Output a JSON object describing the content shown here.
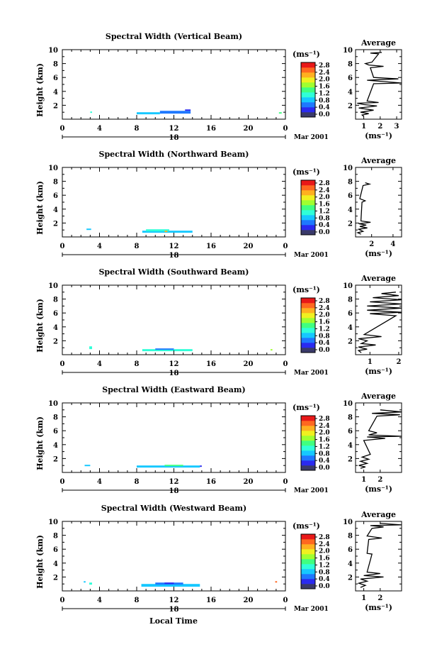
{
  "figure": {
    "xlabel": "Local Time",
    "ylabel": "Height (km)",
    "date_label": "Mar 2001",
    "day_label": "18",
    "unit_label": "(ms⁻¹)",
    "avg_title": "Average"
  },
  "colorbar": {
    "tick_labels": [
      "0.0",
      "0.4",
      "0.8",
      "1.2",
      "1.6",
      "2.0",
      "2.4",
      "2.8"
    ],
    "colors": [
      "#3a3a6a",
      "#2a2af0",
      "#1e78ff",
      "#16c8ff",
      "#30ffd8",
      "#40ff80",
      "#a0ff30",
      "#f0f020",
      "#ffb020",
      "#ff6820",
      "#e81818"
    ]
  },
  "chart_data": [
    {
      "type": "heatmap",
      "title": "Spectral Width (Vertical Beam)",
      "xlim": [
        0,
        24
      ],
      "ylim": [
        0,
        10
      ],
      "xticks": [
        "0",
        "4",
        "8",
        "12",
        "16",
        "20",
        "0"
      ],
      "yticks": [
        "2",
        "4",
        "6",
        "8",
        "10"
      ],
      "patches": [
        {
          "x0": 3.0,
          "x1": 3.2,
          "y0": 0.9,
          "y1": 1.1,
          "v": 1.2
        },
        {
          "x0": 8.0,
          "x1": 10.5,
          "y0": 0.7,
          "y1": 1.0,
          "v": 1.0
        },
        {
          "x0": 10.5,
          "x1": 13.8,
          "y0": 0.8,
          "y1": 1.2,
          "v": 0.6
        },
        {
          "x0": 13.2,
          "x1": 13.8,
          "y0": 1.2,
          "y1": 1.4,
          "v": 0.3
        },
        {
          "x0": 23.3,
          "x1": 23.6,
          "y0": 0.8,
          "y1": 1.0,
          "v": 1.4
        }
      ],
      "average": {
        "xlim": [
          0.5,
          3.3
        ],
        "xticks": [
          1,
          2,
          3
        ],
        "profile": [
          [
            1.0,
            0.4
          ],
          [
            0.9,
            0.6
          ],
          [
            1.3,
            0.8
          ],
          [
            0.8,
            1.0
          ],
          [
            1.6,
            1.3
          ],
          [
            0.7,
            1.6
          ],
          [
            1.8,
            1.9
          ],
          [
            1.0,
            2.1
          ],
          [
            0.6,
            2.3
          ],
          [
            1.9,
            2.4
          ],
          [
            1.2,
            2.6
          ],
          [
            1.6,
            5.1
          ],
          [
            3.3,
            5.2
          ],
          [
            1.2,
            5.6
          ],
          [
            3.1,
            5.8
          ],
          [
            1.6,
            6.0
          ],
          [
            1.4,
            7.4
          ],
          [
            2.2,
            7.6
          ],
          [
            1.3,
            7.8
          ],
          [
            1.1,
            8.0
          ],
          [
            1.5,
            8.2
          ],
          [
            1.9,
            9.4
          ],
          [
            1.4,
            9.5
          ],
          [
            2.1,
            9.6
          ]
        ]
      }
    },
    {
      "type": "heatmap",
      "title": "Spectral Width (Northward Beam)",
      "xlim": [
        0,
        24
      ],
      "ylim": [
        0,
        10
      ],
      "xticks": [
        "0",
        "4",
        "8",
        "12",
        "16",
        "20",
        "0"
      ],
      "yticks": [
        "2",
        "4",
        "6",
        "8",
        "10"
      ],
      "patches": [
        {
          "x0": 2.6,
          "x1": 3.1,
          "y0": 1.0,
          "y1": 1.2,
          "v": 0.9
        },
        {
          "x0": 8.6,
          "x1": 14.0,
          "y0": 0.6,
          "y1": 0.9,
          "v": 0.9
        },
        {
          "x0": 9.0,
          "x1": 11.5,
          "y0": 0.8,
          "y1": 1.1,
          "v": 1.3
        },
        {
          "x0": 11.0,
          "x1": 11.3,
          "y0": 0.7,
          "y1": 0.9,
          "v": 2.2
        }
      ],
      "average": {
        "xlim": [
          0.5,
          4.8
        ],
        "xticks": [
          2,
          4
        ],
        "profile": [
          [
            1.0,
            0.4
          ],
          [
            0.7,
            0.6
          ],
          [
            1.2,
            0.8
          ],
          [
            0.8,
            1.1
          ],
          [
            1.6,
            1.3
          ],
          [
            0.9,
            1.5
          ],
          [
            1.5,
            1.7
          ],
          [
            0.8,
            1.9
          ],
          [
            1.9,
            2.1
          ],
          [
            1.0,
            2.3
          ],
          [
            1.1,
            5.0
          ],
          [
            1.4,
            5.2
          ],
          [
            0.9,
            5.5
          ],
          [
            1.2,
            7.4
          ],
          [
            1.8,
            7.6
          ],
          [
            1.4,
            7.8
          ]
        ]
      }
    },
    {
      "type": "heatmap",
      "title": "Spectral Width (Southward Beam)",
      "xlim": [
        0,
        24
      ],
      "ylim": [
        0,
        10
      ],
      "xticks": [
        "0",
        "4",
        "8",
        "12",
        "16",
        "20",
        "0"
      ],
      "yticks": [
        "2",
        "4",
        "6",
        "8",
        "10"
      ],
      "patches": [
        {
          "x0": 2.9,
          "x1": 3.2,
          "y0": 0.8,
          "y1": 1.2,
          "v": 1.2
        },
        {
          "x0": 8.6,
          "x1": 14.0,
          "y0": 0.5,
          "y1": 0.8,
          "v": 1.1
        },
        {
          "x0": 10.0,
          "x1": 12.0,
          "y0": 0.7,
          "y1": 0.9,
          "v": 0.7
        },
        {
          "x0": 22.4,
          "x1": 22.6,
          "y0": 0.6,
          "y1": 0.8,
          "v": 1.9
        }
      ],
      "average": {
        "xlim": [
          0.5,
          2.1
        ],
        "xticks": [
          1,
          2
        ],
        "profile": [
          [
            0.7,
            0.3
          ],
          [
            0.6,
            0.6
          ],
          [
            0.9,
            0.8
          ],
          [
            0.6,
            1.1
          ],
          [
            1.2,
            1.4
          ],
          [
            0.7,
            1.6
          ],
          [
            0.9,
            2.0
          ],
          [
            0.6,
            2.3
          ],
          [
            1.4,
            2.6
          ],
          [
            0.8,
            2.9
          ],
          [
            1.9,
            5.6
          ],
          [
            1.0,
            5.9
          ],
          [
            2.1,
            6.1
          ],
          [
            0.9,
            6.4
          ],
          [
            2.1,
            6.7
          ],
          [
            0.9,
            7.0
          ],
          [
            2.1,
            7.3
          ],
          [
            1.0,
            7.6
          ],
          [
            2.1,
            7.9
          ],
          [
            1.1,
            8.2
          ],
          [
            2.0,
            8.5
          ],
          [
            1.4,
            8.8
          ],
          [
            1.9,
            9.0
          ]
        ]
      }
    },
    {
      "type": "heatmap",
      "title": "Spectral Width (Eastward Beam)",
      "xlim": [
        0,
        24
      ],
      "ylim": [
        0,
        10
      ],
      "xticks": [
        "0",
        "4",
        "8",
        "12",
        "16",
        "20",
        "0"
      ],
      "yticks": [
        "2",
        "4",
        "6",
        "8",
        "10"
      ],
      "patches": [
        {
          "x0": 2.4,
          "x1": 3.0,
          "y0": 0.9,
          "y1": 1.1,
          "v": 1.0
        },
        {
          "x0": 8.0,
          "x1": 14.8,
          "y0": 0.7,
          "y1": 1.0,
          "v": 1.0
        },
        {
          "x0": 11.0,
          "x1": 13.0,
          "y0": 0.9,
          "y1": 1.1,
          "v": 1.6
        },
        {
          "x0": 14.8,
          "x1": 15.0,
          "y0": 0.8,
          "y1": 1.0,
          "v": 0.4
        }
      ],
      "average": {
        "xlim": [
          0.5,
          3.3
        ],
        "xticks": [
          1,
          2
        ],
        "profile": [
          [
            0.8,
            0.6
          ],
          [
            1.1,
            0.8
          ],
          [
            0.7,
            1.0
          ],
          [
            1.2,
            1.3
          ],
          [
            0.8,
            1.6
          ],
          [
            1.3,
            1.9
          ],
          [
            0.9,
            2.2
          ],
          [
            1.4,
            2.6
          ],
          [
            1.0,
            4.6
          ],
          [
            2.3,
            4.9
          ],
          [
            1.2,
            5.1
          ],
          [
            3.3,
            5.2
          ],
          [
            1.3,
            5.4
          ],
          [
            1.8,
            5.7
          ],
          [
            1.3,
            6.0
          ],
          [
            1.8,
            8.1
          ],
          [
            3.2,
            8.3
          ],
          [
            1.5,
            8.5
          ],
          [
            3.3,
            8.7
          ],
          [
            2.0,
            9.0
          ]
        ]
      }
    },
    {
      "type": "heatmap",
      "title": "Spectral Width (Westward Beam)",
      "xlim": [
        0,
        24
      ],
      "ylim": [
        0,
        10
      ],
      "xticks": [
        "0",
        "4",
        "8",
        "12",
        "16",
        "20",
        "0"
      ],
      "yticks": [
        "2",
        "4",
        "6",
        "8",
        "10"
      ],
      "patches": [
        {
          "x0": 2.3,
          "x1": 2.5,
          "y0": 1.2,
          "y1": 1.4,
          "v": 0.9
        },
        {
          "x0": 2.9,
          "x1": 3.2,
          "y0": 0.9,
          "y1": 1.2,
          "v": 1.2
        },
        {
          "x0": 8.5,
          "x1": 14.8,
          "y0": 0.6,
          "y1": 1.0,
          "v": 1.0
        },
        {
          "x0": 10.0,
          "x1": 13.0,
          "y0": 0.9,
          "y1": 1.2,
          "v": 0.6
        },
        {
          "x0": 11.0,
          "x1": 12.0,
          "y0": 1.0,
          "y1": 1.2,
          "v": 0.3
        },
        {
          "x0": 22.9,
          "x1": 23.1,
          "y0": 1.2,
          "y1": 1.4,
          "v": 2.6
        }
      ],
      "average": {
        "xlim": [
          0.5,
          3.3
        ],
        "xticks": [
          1,
          2
        ],
        "profile": [
          [
            0.8,
            0.5
          ],
          [
            1.1,
            0.8
          ],
          [
            0.7,
            1.1
          ],
          [
            1.2,
            1.4
          ],
          [
            0.8,
            1.7
          ],
          [
            2.2,
            2.0
          ],
          [
            1.0,
            2.2
          ],
          [
            2.0,
            2.5
          ],
          [
            1.2,
            2.7
          ],
          [
            1.5,
            5.3
          ],
          [
            1.2,
            5.4
          ],
          [
            1.3,
            7.4
          ],
          [
            2.1,
            7.6
          ],
          [
            1.2,
            7.9
          ],
          [
            1.5,
            9.0
          ],
          [
            2.2,
            9.2
          ],
          [
            1.4,
            9.4
          ],
          [
            3.3,
            9.5
          ],
          [
            2.0,
            9.7
          ]
        ]
      }
    }
  ]
}
